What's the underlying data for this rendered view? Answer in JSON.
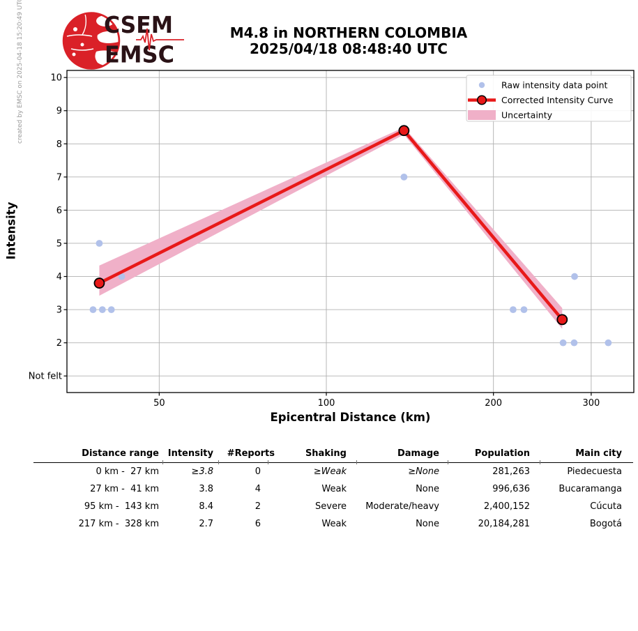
{
  "meta": {
    "created_by": "created by EMSC on 2025-04-18 15:20:49 UTC"
  },
  "logo": {
    "top": "CSEM",
    "bottom": "EMSC"
  },
  "title": {
    "line1": "M4.8 in NORTHERN COLOMBIA",
    "line2": "2025/04/18 08:48:40 UTC"
  },
  "chart_data": {
    "type": "line",
    "xlabel": "Epicentral Distance (km)",
    "ylabel": "Intensity",
    "x_scale": "log",
    "x_range_km": [
      34.1,
      358
    ],
    "x_ticks": [
      50,
      100,
      200,
      300
    ],
    "y_range": [
      0.5,
      10.214
    ],
    "y_ticks": [
      {
        "v": 1,
        "label": "Not felt"
      },
      {
        "v": 2,
        "label": "2"
      },
      {
        "v": 3,
        "label": "3"
      },
      {
        "v": 4,
        "label": "4"
      },
      {
        "v": 5,
        "label": "5"
      },
      {
        "v": 6,
        "label": "6"
      },
      {
        "v": 7,
        "label": "7"
      },
      {
        "v": 8,
        "label": "8"
      },
      {
        "v": 9,
        "label": "9"
      },
      {
        "v": 10,
        "label": "10"
      }
    ],
    "grid": true,
    "legend_position": "upper right",
    "legend": [
      {
        "type": "dot",
        "label": "Raw intensity data point"
      },
      {
        "type": "line-marker",
        "label": "Corrected Intensity Curve"
      },
      {
        "type": "band",
        "label": "Uncertainty"
      }
    ],
    "raw_points": [
      {
        "km": 38,
        "intensity": 3
      },
      {
        "km": 39.5,
        "intensity": 3
      },
      {
        "km": 41,
        "intensity": 3
      },
      {
        "km": 39,
        "intensity": 5
      },
      {
        "km": 42.8,
        "intensity": 4
      },
      {
        "km": 138,
        "intensity": 7
      },
      {
        "km": 217,
        "intensity": 3
      },
      {
        "km": 227,
        "intensity": 3
      },
      {
        "km": 280,
        "intensity": 4
      },
      {
        "km": 267,
        "intensity": 2
      },
      {
        "km": 279.5,
        "intensity": 2
      },
      {
        "km": 322,
        "intensity": 2
      }
    ],
    "corrected_curve": [
      {
        "km": 39,
        "intensity": 3.8
      },
      {
        "km": 138,
        "intensity": 8.4
      },
      {
        "km": 266,
        "intensity": 2.7
      }
    ],
    "uncertainty_band": [
      {
        "km": 39,
        "upper": 4.33,
        "lower": 3.42
      },
      {
        "km": 138,
        "upper": 8.5,
        "lower": 8.28
      },
      {
        "km": 266,
        "upper": 3.05,
        "lower": 2.42
      }
    ],
    "colors": {
      "raw_point": "#b1c1ea",
      "curve": "#e81919",
      "band": "#f0b0c8",
      "grid": "#b0b0b0",
      "axis": "#000000",
      "marker_edge": "#000000"
    }
  },
  "table": {
    "headers": [
      "Distance range",
      "Intensity",
      "#Reports",
      "Shaking",
      "Damage",
      "Population",
      "Main city"
    ],
    "rows": [
      {
        "range": "0 km -  27 km",
        "intensity": "≥3.8",
        "reports": "0",
        "shaking": "≥Weak",
        "damage": "≥None",
        "population": "281,263",
        "city": "Piedecuesta",
        "extrapolated": true
      },
      {
        "range": "27 km -  41 km",
        "intensity": "3.8",
        "reports": "4",
        "shaking": "Weak",
        "damage": "None",
        "population": "996,636",
        "city": "Bucaramanga",
        "extrapolated": false
      },
      {
        "range": "95 km -  143 km",
        "intensity": "8.4",
        "reports": "2",
        "shaking": "Severe",
        "damage": "Moderate/heavy",
        "population": "2,400,152",
        "city": "Cúcuta",
        "extrapolated": false
      },
      {
        "range": "217 km -  328 km",
        "intensity": "2.7",
        "reports": "6",
        "shaking": "Weak",
        "damage": "None",
        "population": "20,184,281",
        "city": "Bogotá",
        "extrapolated": false
      }
    ]
  }
}
